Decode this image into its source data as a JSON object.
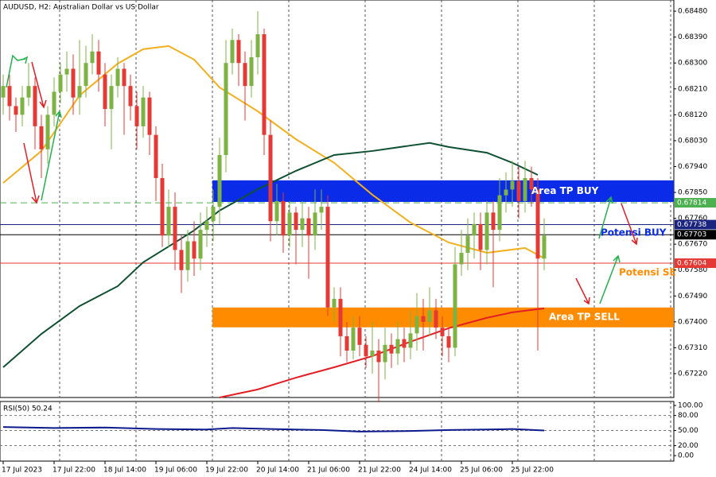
{
  "chart_data": {
    "type": "candlestick",
    "title": "AUDUSD, H2:  Australian Dollar vs US Dollar",
    "up_color": "#7cb342",
    "down_color": "#e53935",
    "ylim": [
      0.67137,
      0.68519
    ],
    "yticks": [
      {
        "value": 0.6848,
        "label": "0.68480"
      },
      {
        "value": 0.6839,
        "label": "0.68390"
      },
      {
        "value": 0.683,
        "label": "0.68300"
      },
      {
        "value": 0.6821,
        "label": "0.68210"
      },
      {
        "value": 0.6812,
        "label": "0.68120"
      },
      {
        "value": 0.6803,
        "label": "0.68030"
      },
      {
        "value": 0.6794,
        "label": "0.67940"
      },
      {
        "value": 0.6785,
        "label": "0.67850"
      },
      {
        "value": 0.6776,
        "label": "0.67760"
      },
      {
        "value": 0.6767,
        "label": "0.67670"
      },
      {
        "value": 0.6758,
        "label": "0.67580"
      },
      {
        "value": 0.6749,
        "label": "0.67490"
      },
      {
        "value": 0.674,
        "label": "0.67400"
      },
      {
        "value": 0.6731,
        "label": "0.67310"
      },
      {
        "value": 0.6722,
        "label": "0.67220"
      }
    ],
    "xticks": [
      {
        "value": 0,
        "label": "17 Jul 2023"
      },
      {
        "value": 8,
        "label": "17 Jul 22:00"
      },
      {
        "value": 16,
        "label": "18 Jul 14:00"
      },
      {
        "value": 24,
        "label": "19 Jul 06:00"
      },
      {
        "value": 32,
        "label": "19 Jul 22:00"
      },
      {
        "value": 40,
        "label": "20 Jul 14:00"
      },
      {
        "value": 48,
        "label": "21 Jul 06:00"
      },
      {
        "value": 56,
        "label": "21 Jul 22:00"
      },
      {
        "value": 64,
        "label": "24 Jul 14:00"
      },
      {
        "value": 72,
        "label": "25 Jul 06:00"
      },
      {
        "value": 80,
        "label": "25 Jul 22:00"
      }
    ],
    "ohlc": [
      [
        0.6818,
        0.6826,
        0.6812,
        0.6822
      ],
      [
        0.6822,
        0.6826,
        0.681,
        0.6815
      ],
      [
        0.6815,
        0.6818,
        0.6806,
        0.6812
      ],
      [
        0.6812,
        0.6822,
        0.6808,
        0.6818
      ],
      [
        0.6818,
        0.683,
        0.6815,
        0.6822
      ],
      [
        0.6822,
        0.6825,
        0.68,
        0.6808
      ],
      [
        0.6808,
        0.6812,
        0.679,
        0.68
      ],
      [
        0.68,
        0.6815,
        0.6795,
        0.6812
      ],
      [
        0.6812,
        0.6825,
        0.6808,
        0.682
      ],
      [
        0.682,
        0.683,
        0.6816,
        0.6826
      ],
      [
        0.6826,
        0.6834,
        0.682,
        0.6828
      ],
      [
        0.6828,
        0.6833,
        0.6812,
        0.6818
      ],
      [
        0.6818,
        0.6838,
        0.6812,
        0.6822
      ],
      [
        0.6822,
        0.6836,
        0.6818,
        0.683
      ],
      [
        0.683,
        0.684,
        0.6826,
        0.6834
      ],
      [
        0.6834,
        0.6838,
        0.682,
        0.6826
      ],
      [
        0.6826,
        0.683,
        0.6808,
        0.6814
      ],
      [
        0.6814,
        0.6826,
        0.68,
        0.6822
      ],
      [
        0.6822,
        0.6832,
        0.6818,
        0.6828
      ],
      [
        0.6828,
        0.683,
        0.6805,
        0.6822
      ],
      [
        0.6822,
        0.6826,
        0.681,
        0.6815
      ],
      [
        0.6815,
        0.682,
        0.68,
        0.6808
      ],
      [
        0.6808,
        0.6822,
        0.6804,
        0.6818
      ],
      [
        0.6818,
        0.682,
        0.6798,
        0.6805
      ],
      [
        0.6805,
        0.6808,
        0.6782,
        0.679
      ],
      [
        0.679,
        0.6795,
        0.6766,
        0.677
      ],
      [
        0.677,
        0.6786,
        0.6766,
        0.678
      ],
      [
        0.678,
        0.6785,
        0.6758,
        0.6765
      ],
      [
        0.6765,
        0.677,
        0.675,
        0.6758
      ],
      [
        0.6758,
        0.6772,
        0.6754,
        0.6768
      ],
      [
        0.6768,
        0.6775,
        0.6756,
        0.6762
      ],
      [
        0.6762,
        0.6778,
        0.6758,
        0.6772
      ],
      [
        0.6772,
        0.678,
        0.6766,
        0.6775
      ],
      [
        0.6775,
        0.6786,
        0.6768,
        0.678
      ],
      [
        0.678,
        0.6804,
        0.6774,
        0.6798
      ],
      [
        0.6798,
        0.6838,
        0.6792,
        0.683
      ],
      [
        0.683,
        0.6842,
        0.6826,
        0.6838
      ],
      [
        0.6838,
        0.684,
        0.6822,
        0.683
      ],
      [
        0.683,
        0.6834,
        0.681,
        0.6822
      ],
      [
        0.6822,
        0.6838,
        0.6818,
        0.6832
      ],
      [
        0.6832,
        0.6848,
        0.6826,
        0.684
      ],
      [
        0.684,
        0.6842,
        0.6798,
        0.6805
      ],
      [
        0.6805,
        0.681,
        0.6768,
        0.6775
      ],
      [
        0.6775,
        0.6788,
        0.677,
        0.6782
      ],
      [
        0.6782,
        0.6785,
        0.6764,
        0.677
      ],
      [
        0.677,
        0.6782,
        0.6766,
        0.6778
      ],
      [
        0.6778,
        0.678,
        0.676,
        0.6772
      ],
      [
        0.6772,
        0.6782,
        0.6766,
        0.6776
      ],
      [
        0.6776,
        0.678,
        0.6755,
        0.677
      ],
      [
        0.677,
        0.6786,
        0.6765,
        0.6778
      ],
      [
        0.6778,
        0.6786,
        0.6772,
        0.678
      ],
      [
        0.678,
        0.6784,
        0.6742,
        0.6745
      ],
      [
        0.6745,
        0.6752,
        0.674,
        0.6748
      ],
      [
        0.6748,
        0.6752,
        0.6728,
        0.6735
      ],
      [
        0.6735,
        0.674,
        0.6726,
        0.673
      ],
      [
        0.673,
        0.6742,
        0.6727,
        0.6738
      ],
      [
        0.6738,
        0.6742,
        0.6728,
        0.6732
      ],
      [
        0.6732,
        0.6735,
        0.6724,
        0.6728
      ],
      [
        0.6728,
        0.674,
        0.6722,
        0.673
      ],
      [
        0.673,
        0.6734,
        0.6712,
        0.6726
      ],
      [
        0.6726,
        0.6738,
        0.672,
        0.6732
      ],
      [
        0.6732,
        0.6736,
        0.6724,
        0.6729
      ],
      [
        0.6729,
        0.674,
        0.6725,
        0.6734
      ],
      [
        0.6734,
        0.6738,
        0.6726,
        0.6731
      ],
      [
        0.6731,
        0.6744,
        0.6727,
        0.6736
      ],
      [
        0.6736,
        0.675,
        0.673,
        0.6742
      ],
      [
        0.6742,
        0.6748,
        0.673,
        0.674
      ],
      [
        0.674,
        0.6752,
        0.6735,
        0.6744
      ],
      [
        0.6744,
        0.6748,
        0.6734,
        0.6738
      ],
      [
        0.6738,
        0.6742,
        0.6728,
        0.6735
      ],
      [
        0.6735,
        0.6738,
        0.6726,
        0.6731
      ],
      [
        0.6731,
        0.6766,
        0.6728,
        0.676
      ],
      [
        0.676,
        0.6772,
        0.6756,
        0.6764
      ],
      [
        0.6764,
        0.6776,
        0.6758,
        0.677
      ],
      [
        0.677,
        0.6778,
        0.6762,
        0.6774
      ],
      [
        0.6774,
        0.6778,
        0.6758,
        0.6765
      ],
      [
        0.6765,
        0.6782,
        0.676,
        0.6778
      ],
      [
        0.6778,
        0.6782,
        0.6752,
        0.6772
      ],
      [
        0.6772,
        0.679,
        0.6768,
        0.6784
      ],
      [
        0.6784,
        0.6792,
        0.6778,
        0.6786
      ],
      [
        0.6786,
        0.6796,
        0.678,
        0.6789
      ],
      [
        0.6789,
        0.6794,
        0.6776,
        0.6782
      ],
      [
        0.6782,
        0.6796,
        0.6778,
        0.679
      ],
      [
        0.679,
        0.6794,
        0.678,
        0.6786
      ],
      [
        0.6786,
        0.679,
        0.673,
        0.6762
      ],
      [
        0.6762,
        0.6776,
        0.6758,
        0.677
      ]
    ],
    "moving_averages": [
      {
        "color": "#f2b01e",
        "x": [
          0,
          6,
          12,
          18,
          22,
          26,
          30,
          34,
          40,
          46,
          52,
          58,
          64,
          70,
          76,
          82,
          85
        ],
        "values": [
          0.67883,
          0.67994,
          0.68187,
          0.68298,
          0.68348,
          0.68359,
          0.68312,
          0.68215,
          0.68132,
          0.68035,
          0.67953,
          0.67842,
          0.67745,
          0.67676,
          0.6764,
          0.67657,
          0.67621
        ]
      },
      {
        "color": "#0f5132",
        "x": [
          0,
          6,
          12,
          18,
          22,
          26,
          30,
          34,
          40,
          46,
          52,
          58,
          64,
          67,
          70,
          76,
          80,
          84
        ],
        "values": [
          0.67242,
          0.67358,
          0.67455,
          0.67524,
          0.67607,
          0.67662,
          0.67718,
          0.67787,
          0.67861,
          0.67925,
          0.6798,
          0.67994,
          0.68013,
          0.68022,
          0.68008,
          0.67988,
          0.67953,
          0.67911
        ]
      },
      {
        "color": "#e31e24",
        "x": [
          34,
          40,
          46,
          52,
          58,
          64,
          70,
          76,
          80,
          85
        ],
        "values": [
          0.67137,
          0.67165,
          0.67206,
          0.67242,
          0.67281,
          0.67331,
          0.67378,
          0.67414,
          0.67433,
          0.67447
        ]
      }
    ],
    "levels": [
      {
        "value": 0.67814,
        "label": "0.67814",
        "color": "#4caf50",
        "dashed": true
      },
      {
        "value": 0.67738,
        "label": "0.67738",
        "color": "#1a237e",
        "dashed": false
      },
      {
        "value": 0.67703,
        "label": "0.67703",
        "color": "#000000",
        "dashed": false
      },
      {
        "value": 0.67604,
        "label": "0.67604",
        "color": "#e53935",
        "dashed": false
      }
    ],
    "zones": [
      {
        "label": "Area TP BUY",
        "top": 0.67892,
        "bottom": 0.67817,
        "color": "#0a2be8"
      },
      {
        "label": "Area TP SELL",
        "top": 0.6745,
        "bottom": 0.67381,
        "color": "#ff8c00"
      }
    ],
    "annotations": [
      {
        "text": "Potensi BUY",
        "color": "#0a2be8"
      },
      {
        "text": "Potensi SE",
        "color": "#ff8c00"
      }
    ],
    "rsi": {
      "label": "RSI(50) 50.24",
      "color": "#0d1b8c",
      "ylim": [
        -11,
        108
      ],
      "yticks": [
        {
          "value": 100,
          "label": "100.00"
        },
        {
          "value": 80,
          "label": "80.00"
        },
        {
          "value": 50,
          "label": "50.00"
        },
        {
          "value": 20,
          "label": "20.00"
        },
        {
          "value": 0,
          "label": "0.00"
        }
      ],
      "x": [
        0,
        8,
        16,
        24,
        32,
        36,
        42,
        50,
        56,
        64,
        70,
        76,
        80,
        85
      ],
      "values": [
        57,
        55,
        56,
        53,
        52,
        55,
        53,
        51,
        48,
        49,
        51,
        52,
        53,
        50
      ]
    }
  }
}
